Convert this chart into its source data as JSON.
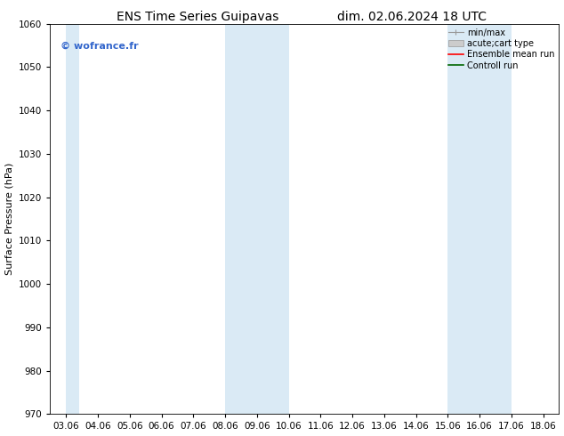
{
  "title_left": "ENS Time Series Guipavas",
  "title_right": "dim. 02.06.2024 18 UTC",
  "ylabel": "Surface Pressure (hPa)",
  "ylim": [
    970,
    1060
  ],
  "yticks": [
    970,
    980,
    990,
    1000,
    1010,
    1020,
    1030,
    1040,
    1050,
    1060
  ],
  "xtick_labels": [
    "03.06",
    "04.06",
    "05.06",
    "06.06",
    "07.06",
    "08.06",
    "09.06",
    "10.06",
    "11.06",
    "12.06",
    "13.06",
    "14.06",
    "15.06",
    "16.06",
    "17.06",
    "18.06"
  ],
  "n_xticks": 16,
  "shaded_regions": [
    {
      "xstart": 0,
      "xend": 0.4
    },
    {
      "xstart": 5.0,
      "xend": 7.0
    },
    {
      "xstart": 12.0,
      "xend": 14.0
    }
  ],
  "shaded_color": "#daeaf5",
  "background_color": "#ffffff",
  "watermark_text": "© wofrance.fr",
  "watermark_color": "#3366cc",
  "title_fontsize": 10,
  "axis_label_fontsize": 8,
  "tick_fontsize": 7.5,
  "watermark_fontsize": 8,
  "legend_fontsize": 7,
  "legend_label_color": "#111111",
  "minmax_color": "#999999",
  "acute_color": "#cccccc",
  "ensemble_color": "#ff0000",
  "control_color": "#006600"
}
